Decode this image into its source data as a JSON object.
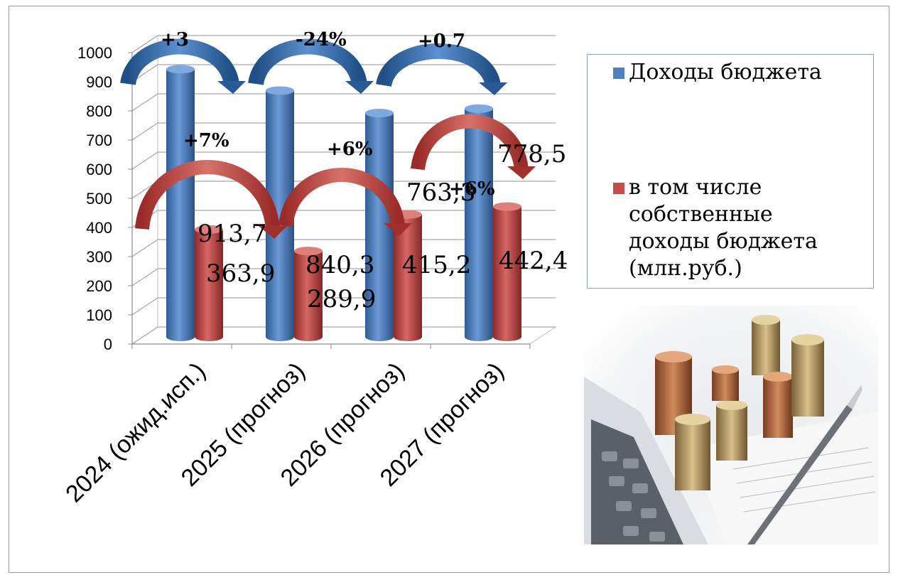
{
  "chart_data": {
    "type": "bar",
    "categories": [
      "2024 (ожид.исп.)",
      "2025 (прогноз)",
      "2026 (прогноз)",
      "2027 (прогноз)"
    ],
    "series": [
      {
        "name": "Доходы бюджета",
        "values": [
          913.7,
          840.3,
          763.3,
          778.5
        ],
        "color": "#4f81bd",
        "labels": [
          "913,7",
          "840,3",
          "763,3",
          "778,5"
        ]
      },
      {
        "name": "в том числе собственные доходы бюджета (млн.руб.)",
        "values": [
          363.9,
          289.9,
          415.2,
          442.4
        ],
        "color": "#c0504d",
        "labels": [
          "363,9",
          "289,9",
          "415,2",
          "442,4"
        ]
      }
    ],
    "ylim": [
      0,
      1000
    ],
    "yticks": [
      0,
      100,
      200,
      300,
      400,
      500,
      600,
      700,
      800,
      900,
      1000
    ],
    "grid": true,
    "legend_position": "right",
    "annotations": {
      "income_changes": [
        "+3",
        "-24%",
        "+0.7"
      ],
      "own_income_changes": [
        "+7%",
        "+6%",
        "+6%"
      ]
    }
  },
  "legend": {
    "income_label": "Доходы бюджета",
    "own_income_lines": [
      "в том числе",
      "собственные",
      "доходы бюджета",
      "(млн.руб.)"
    ]
  },
  "image": {
    "description_icon": "coins-calculator-pen-photo"
  }
}
